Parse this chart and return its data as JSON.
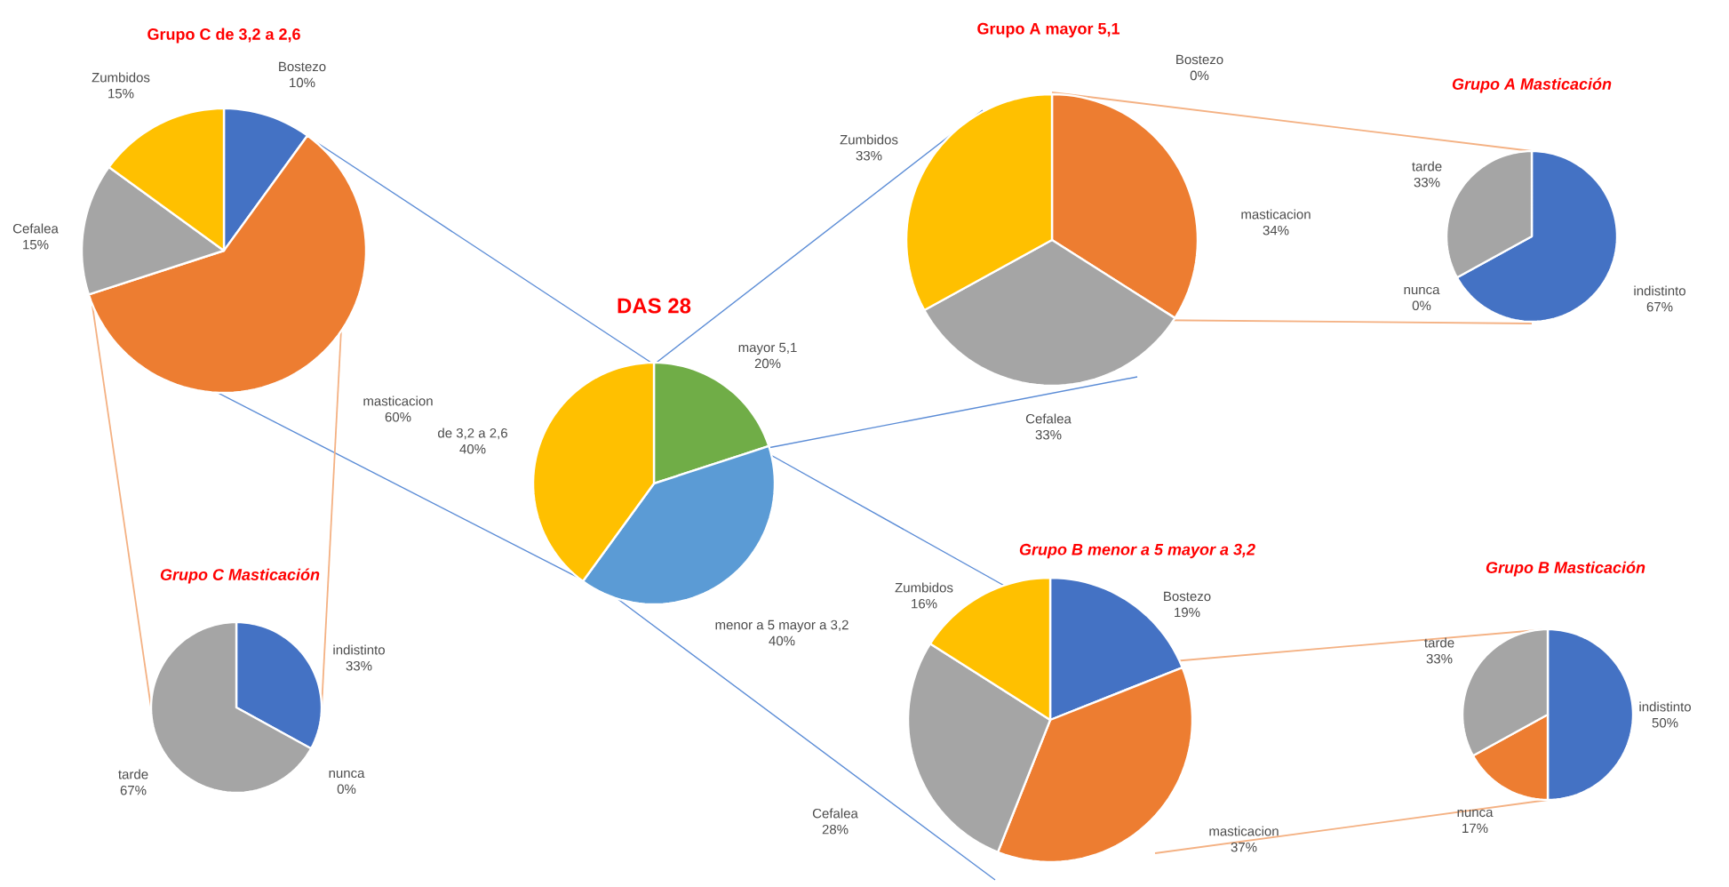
{
  "chart_data": [
    {
      "type": "pie",
      "title": "Grupo C  de 3,2 a 2,6",
      "categories": [
        "Bostezo",
        "masticacion",
        "Cefalea",
        "Zumbidos"
      ],
      "values": [
        10,
        60,
        15,
        15
      ],
      "value_labels": [
        "10%",
        "60%",
        "15%",
        "15%"
      ],
      "colors": [
        "#4472c4",
        "#ed7d31",
        "#a5a5a5",
        "#ffc000"
      ]
    },
    {
      "type": "pie",
      "title": "DAS 28",
      "categories": [
        "mayor 5,1",
        "menor a 5 mayor a 3,2",
        "de 3,2 a 2,6"
      ],
      "values": [
        20,
        40,
        40
      ],
      "value_labels": [
        "20%",
        "40%",
        "40%"
      ],
      "colors": [
        "#70ad47",
        "#5b9bd5",
        "#ffc000"
      ]
    },
    {
      "type": "pie",
      "title": "Grupo A  mayor 5,1",
      "categories": [
        "Bostezo",
        "masticacion",
        "Cefalea",
        "Zumbidos"
      ],
      "values": [
        0,
        34,
        33,
        33
      ],
      "value_labels": [
        "0%",
        "34%",
        "33%",
        "33%"
      ],
      "colors": [
        "#4472c4",
        "#ed7d31",
        "#a5a5a5",
        "#ffc000"
      ]
    },
    {
      "type": "pie",
      "title": "Grupo A  Masticación",
      "categories": [
        "indistinto",
        "nunca",
        "tarde"
      ],
      "values": [
        67,
        0,
        33
      ],
      "value_labels": [
        "67%",
        "0%",
        "33%"
      ],
      "colors": [
        "#4472c4",
        "#ed7d31",
        "#a5a5a5"
      ]
    },
    {
      "type": "pie",
      "title": "Grupo B  menor a 5 mayor a 3,2",
      "categories": [
        "Bostezo",
        "masticacion",
        "Cefalea",
        "Zumbidos"
      ],
      "values": [
        19,
        37,
        28,
        16
      ],
      "value_labels": [
        "19%",
        "37%",
        "28%",
        "16%"
      ],
      "colors": [
        "#4472c4",
        "#ed7d31",
        "#a5a5a5",
        "#ffc000"
      ]
    },
    {
      "type": "pie",
      "title": "Grupo B  Masticación",
      "categories": [
        "indistinto",
        "nunca",
        "tarde"
      ],
      "values": [
        50,
        17,
        33
      ],
      "value_labels": [
        "50%",
        "17%",
        "33%"
      ],
      "colors": [
        "#4472c4",
        "#ed7d31",
        "#a5a5a5"
      ]
    },
    {
      "type": "pie",
      "title": "Grupo C  Masticación",
      "categories": [
        "indistinto",
        "nunca",
        "tarde"
      ],
      "values": [
        33,
        0,
        67
      ],
      "value_labels": [
        "33%",
        "0%",
        "67%"
      ],
      "colors": [
        "#4472c4",
        "#ed7d31",
        "#a5a5a5"
      ]
    }
  ]
}
